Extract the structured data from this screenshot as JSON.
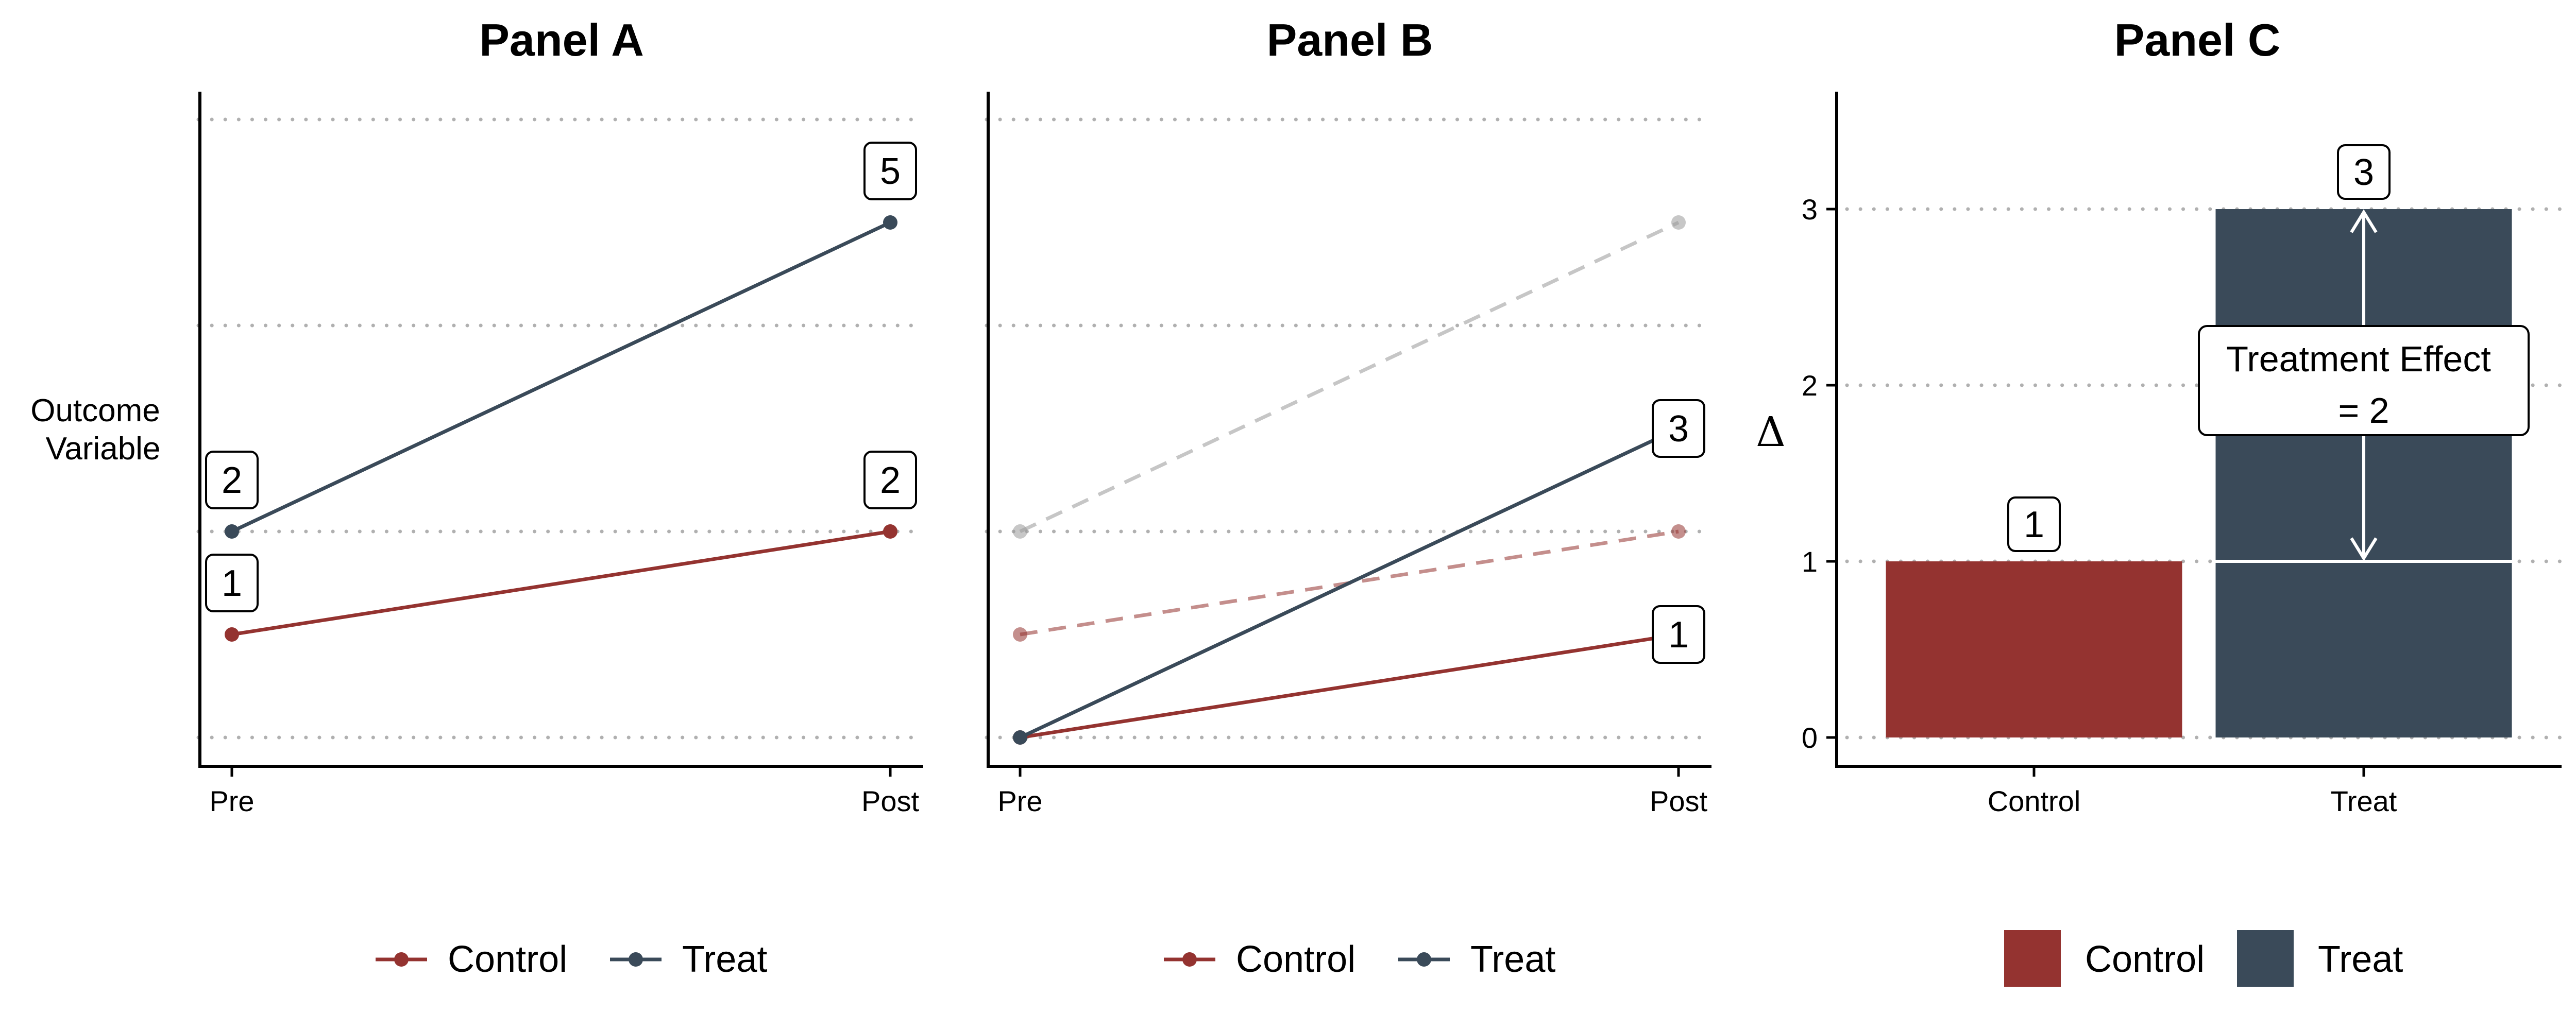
{
  "colors": {
    "control": "#943330",
    "treat": "#3a4a59",
    "ghost": "#999999",
    "grid": "#b0b0b0"
  },
  "chart_data": [
    {
      "type": "line",
      "title": "Panel A",
      "ylabel": "Outcome\nVariable",
      "x": [
        "Pre",
        "Post"
      ],
      "ylim": [
        0,
        5
      ],
      "gridlines": [
        0,
        2,
        4,
        6
      ],
      "series": [
        {
          "name": "Control",
          "key": "control",
          "values": [
            1,
            2
          ]
        },
        {
          "name": "Treat",
          "key": "treat",
          "values": [
            2,
            5
          ]
        }
      ],
      "annotations": [
        {
          "x": "Pre",
          "y": 2,
          "text": "2",
          "position": "above"
        },
        {
          "x": "Pre",
          "y": 1,
          "text": "1",
          "position": "above"
        },
        {
          "x": "Post",
          "y": 5,
          "text": "5",
          "position": "above"
        },
        {
          "x": "Post",
          "y": 2,
          "text": "2",
          "position": "above"
        }
      ],
      "legend": {
        "placement": "bottom",
        "entries": [
          "Control",
          "Treat"
        ]
      }
    },
    {
      "type": "line",
      "title": "Panel B",
      "x": [
        "Pre",
        "Post"
      ],
      "ylim": [
        0,
        5
      ],
      "gridlines": [
        0,
        2,
        4,
        6
      ],
      "series": [
        {
          "name": "Control",
          "key": "control",
          "values": [
            0,
            1
          ]
        },
        {
          "name": "Treat",
          "key": "treat",
          "values": [
            0,
            3
          ]
        }
      ],
      "reference_series": [
        {
          "key": "control",
          "values": [
            1,
            2
          ],
          "style": "dashed"
        },
        {
          "key": "ghost",
          "values": [
            2,
            5
          ],
          "style": "dashed"
        }
      ],
      "annotations": [
        {
          "x": "Post",
          "y": 3,
          "text": "3",
          "position": "on"
        },
        {
          "x": "Post",
          "y": 1,
          "text": "1",
          "position": "on"
        }
      ],
      "legend": {
        "placement": "bottom",
        "entries": [
          "Control",
          "Treat"
        ]
      }
    },
    {
      "type": "bar",
      "title": "Panel C",
      "ylabel": "Δ",
      "categories": [
        "Control",
        "Treat"
      ],
      "values": [
        1,
        3
      ],
      "ylim": [
        0,
        3
      ],
      "yticks": [
        "0",
        "1",
        "2",
        "3"
      ],
      "gridlines": [
        0,
        1,
        2,
        3
      ],
      "baseline_in_treat_bar": 1,
      "annotations": [
        {
          "x": "Control",
          "y": 1,
          "text": "1",
          "position": "above"
        },
        {
          "x": "Treat",
          "y": 3,
          "text": "3",
          "position": "above"
        }
      ],
      "effect_annotation": {
        "from": 1,
        "to": 3,
        "text": [
          "Treatment Effect",
          "= 2"
        ]
      },
      "legend": {
        "placement": "bottom",
        "entries": [
          "Control",
          "Treat"
        ]
      }
    }
  ]
}
